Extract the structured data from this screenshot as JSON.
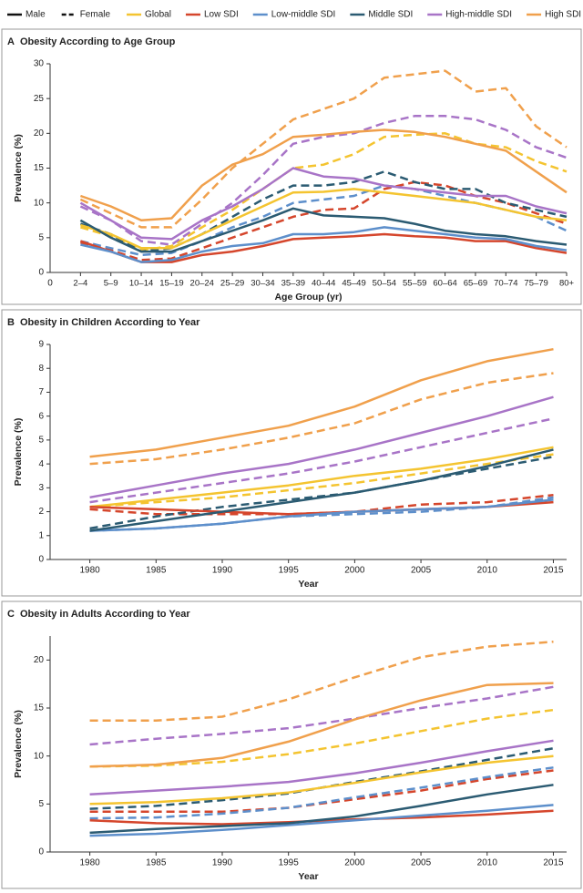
{
  "legend": {
    "styles": [
      {
        "name": "Male",
        "dash": false
      },
      {
        "name": "Female",
        "dash": true
      }
    ],
    "groups": [
      {
        "name": "Global",
        "color": "#f4c430"
      },
      {
        "name": "Low SDI",
        "color": "#d5462c"
      },
      {
        "name": "Low-middle SDI",
        "color": "#5d8fcb"
      },
      {
        "name": "Middle SDI",
        "color": "#2b5b72"
      },
      {
        "name": "High-middle SDI",
        "color": "#a874c7"
      },
      {
        "name": "High SDI",
        "color": "#f0a04c"
      }
    ]
  },
  "chart_data": [
    {
      "type": "line",
      "panel": "A",
      "title": "Obesity According to Age Group",
      "xlabel": "Age Group (yr)",
      "ylabel": "Prevalence (%)",
      "x_origin": "0",
      "categories": [
        "2–4",
        "5–9",
        "10–14",
        "15–19",
        "20–24",
        "25–29",
        "30–34",
        "35–39",
        "40–44",
        "45–49",
        "50–54",
        "55–59",
        "60–64",
        "65–69",
        "70–74",
        "75–79",
        "80+"
      ],
      "ylim": [
        0,
        30
      ],
      "yticks": [
        0,
        5,
        10,
        15,
        20,
        25,
        30
      ],
      "series": [
        {
          "male": [
            6.8,
            5.5,
            3.5,
            3.5,
            5.5,
            7.5,
            9.5,
            11.5,
            11.6,
            12,
            11.5,
            11,
            10.5,
            10,
            9,
            8,
            7.5
          ],
          "female": [
            6.5,
            5.2,
            3.2,
            3.8,
            6.5,
            9,
            12,
            15,
            15.5,
            17,
            19.5,
            19.8,
            20,
            18.5,
            18,
            16,
            14.5
          ]
        },
        {
          "male": [
            4.5,
            3,
            1.5,
            1.5,
            2.5,
            3,
            3.8,
            4.8,
            5,
            5.2,
            5.5,
            5.2,
            5,
            4.5,
            4.5,
            3.5,
            2.8
          ],
          "female": [
            4.3,
            3.2,
            1.8,
            2,
            3.5,
            5,
            6.5,
            8,
            9,
            9.2,
            12,
            13,
            12.5,
            11,
            10,
            8.5,
            7
          ]
        },
        {
          "male": [
            4,
            3,
            1.5,
            1.8,
            3,
            3.8,
            4.2,
            5.5,
            5.5,
            5.8,
            6.5,
            6,
            5.5,
            5,
            4.8,
            3.8,
            3.2
          ],
          "female": [
            4.5,
            3.5,
            2.5,
            2.8,
            4.5,
            6.5,
            8,
            10,
            10.5,
            11,
            12.5,
            12,
            11,
            10,
            9,
            8,
            6
          ]
        },
        {
          "male": [
            7.5,
            5,
            3,
            3,
            4.5,
            6,
            7.5,
            9.2,
            8.2,
            8,
            7.8,
            7,
            6,
            5.5,
            5.2,
            4.5,
            4
          ],
          "female": [
            7,
            5.5,
            3,
            3.5,
            5.5,
            8,
            10.5,
            12.5,
            12.5,
            13,
            14.5,
            13,
            12,
            12,
            10,
            9,
            8
          ]
        },
        {
          "male": [
            10,
            7.5,
            5,
            4.8,
            7.5,
            9.5,
            12,
            15,
            13.8,
            13.5,
            12.5,
            12,
            11.5,
            11,
            11,
            9.5,
            8.5
          ],
          "female": [
            9.5,
            7.5,
            4.5,
            4,
            7,
            10,
            14,
            18.5,
            19.5,
            20,
            21.5,
            22.5,
            22.5,
            22,
            20.5,
            18,
            16.5
          ]
        },
        {
          "male": [
            11,
            9.5,
            7.5,
            7.8,
            12.5,
            15.5,
            17,
            19.5,
            19.8,
            20.2,
            20.5,
            20.2,
            19.5,
            18.5,
            17.5,
            14.5,
            11.5
          ],
          "female": [
            10.5,
            8.5,
            6.5,
            6.5,
            10.5,
            15,
            18.5,
            22,
            23.5,
            25,
            28,
            28.5,
            29,
            26,
            26.5,
            21,
            18
          ]
        }
      ]
    },
    {
      "type": "line",
      "panel": "B",
      "title": "Obesity in Children According to Year",
      "xlabel": "Year",
      "ylabel": "Prevalence (%)",
      "x": [
        1980,
        1985,
        1990,
        1995,
        2000,
        2005,
        2010,
        2015
      ],
      "xlim": [
        1977,
        2016
      ],
      "xticks": [
        1980,
        1985,
        1990,
        1995,
        2000,
        2005,
        2010,
        2015
      ],
      "ylim": [
        0,
        9
      ],
      "yticks": [
        0,
        1,
        2,
        3,
        4,
        5,
        6,
        7,
        8,
        9
      ],
      "series": [
        {
          "male": [
            2.2,
            2.5,
            2.8,
            3.1,
            3.5,
            3.8,
            4.2,
            4.7
          ],
          "female": [
            2.2,
            2.4,
            2.6,
            2.9,
            3.2,
            3.6,
            4.0,
            4.4
          ]
        },
        {
          "male": [
            2.2,
            2.1,
            2.0,
            1.9,
            2.0,
            2.1,
            2.2,
            2.4
          ],
          "female": [
            2.1,
            1.9,
            1.9,
            1.9,
            2.0,
            2.3,
            2.4,
            2.7
          ]
        },
        {
          "male": [
            1.2,
            1.3,
            1.5,
            1.8,
            2.0,
            2.1,
            2.2,
            2.5
          ],
          "female": [
            1.2,
            1.3,
            1.5,
            1.8,
            1.9,
            2.0,
            2.2,
            2.6
          ]
        },
        {
          "male": [
            1.2,
            1.6,
            2.0,
            2.4,
            2.8,
            3.3,
            3.9,
            4.6
          ],
          "female": [
            1.3,
            1.8,
            2.2,
            2.5,
            2.8,
            3.3,
            3.8,
            4.3
          ]
        },
        {
          "male": [
            2.6,
            3.1,
            3.6,
            4.0,
            4.6,
            5.3,
            6.0,
            6.8
          ],
          "female": [
            2.4,
            2.8,
            3.2,
            3.6,
            4.1,
            4.7,
            5.3,
            5.9
          ]
        },
        {
          "male": [
            4.3,
            4.6,
            5.1,
            5.6,
            6.4,
            7.5,
            8.3,
            8.8
          ],
          "female": [
            4.0,
            4.2,
            4.6,
            5.1,
            5.7,
            6.7,
            7.4,
            7.8
          ]
        }
      ]
    },
    {
      "type": "line",
      "panel": "C",
      "title": "Obesity in Adults According to Year",
      "xlabel": "Year",
      "ylabel": "Prevalence (%)",
      "x": [
        1980,
        1985,
        1990,
        1995,
        2000,
        2005,
        2010,
        2015
      ],
      "xlim": [
        1977,
        2016
      ],
      "xticks": [
        1980,
        1985,
        1990,
        1995,
        2000,
        2005,
        2010,
        2015
      ],
      "ylim": [
        0,
        22.5
      ],
      "yticks": [
        0,
        5,
        10,
        15,
        20
      ],
      "series": [
        {
          "male": [
            5.0,
            5.2,
            5.6,
            6.2,
            7.2,
            8.3,
            9.3,
            10.0
          ],
          "female": [
            8.9,
            9.0,
            9.4,
            10.2,
            11.3,
            12.6,
            13.9,
            14.8
          ]
        },
        {
          "male": [
            3.3,
            3.0,
            2.9,
            3.1,
            3.4,
            3.6,
            3.9,
            4.3
          ],
          "female": [
            4.2,
            4.2,
            4.2,
            4.6,
            5.5,
            6.4,
            7.6,
            8.5
          ]
        },
        {
          "male": [
            1.7,
            1.9,
            2.3,
            2.8,
            3.3,
            3.8,
            4.3,
            4.9
          ],
          "female": [
            3.5,
            3.6,
            4.0,
            4.6,
            5.7,
            6.7,
            7.8,
            8.8
          ]
        },
        {
          "male": [
            2.0,
            2.4,
            2.7,
            3.0,
            3.7,
            4.8,
            6.0,
            7.0
          ],
          "female": [
            4.5,
            4.8,
            5.4,
            6.1,
            7.3,
            8.4,
            9.6,
            10.8
          ]
        },
        {
          "male": [
            6.0,
            6.4,
            6.8,
            7.3,
            8.2,
            9.3,
            10.5,
            11.6
          ],
          "female": [
            11.2,
            11.8,
            12.3,
            12.9,
            13.9,
            15.0,
            16.0,
            17.2
          ]
        },
        {
          "male": [
            8.9,
            9.1,
            9.8,
            11.5,
            13.8,
            15.8,
            17.4,
            17.6
          ],
          "female": [
            13.7,
            13.7,
            14.1,
            15.9,
            18.2,
            20.3,
            21.4,
            21.9
          ]
        }
      ]
    }
  ]
}
